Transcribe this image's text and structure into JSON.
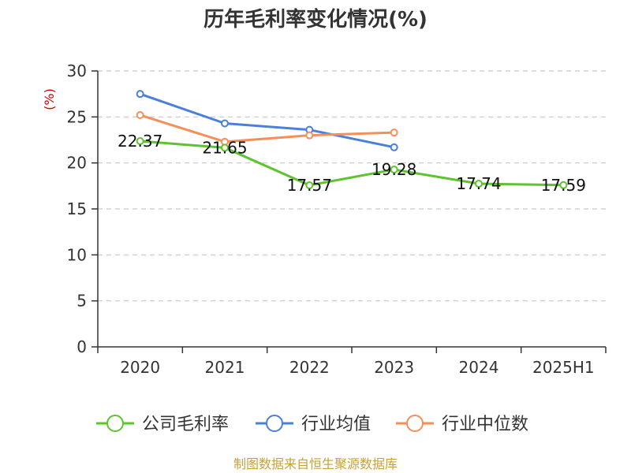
{
  "chart_data": {
    "type": "line",
    "title": "历年毛利率变化情况(%)",
    "ylabel": "(%)",
    "categories": [
      "2020",
      "2021",
      "2022",
      "2023",
      "2024",
      "2025H1"
    ],
    "ylim": [
      0,
      30
    ],
    "yticks": [
      "0",
      "5",
      "10",
      "15",
      "20",
      "25",
      "30"
    ],
    "grid": true,
    "legend_position": "bottom",
    "series": [
      {
        "name": "公司毛利率",
        "color": "#5dc32e",
        "values": [
          22.37,
          21.65,
          17.57,
          19.28,
          17.74,
          17.59
        ],
        "labels": [
          "22.37",
          "21.65",
          "17.57",
          "19.28",
          "17.74",
          "17.59"
        ]
      },
      {
        "name": "行业均值",
        "color": "#4a80da",
        "values": [
          27.5,
          24.3,
          23.6,
          21.7,
          null,
          null
        ]
      },
      {
        "name": "行业中位数",
        "color": "#f58f5a",
        "values": [
          25.2,
          22.3,
          23.0,
          23.3,
          null,
          null
        ]
      }
    ]
  },
  "source": "制图数据来自恒生聚源数据库"
}
